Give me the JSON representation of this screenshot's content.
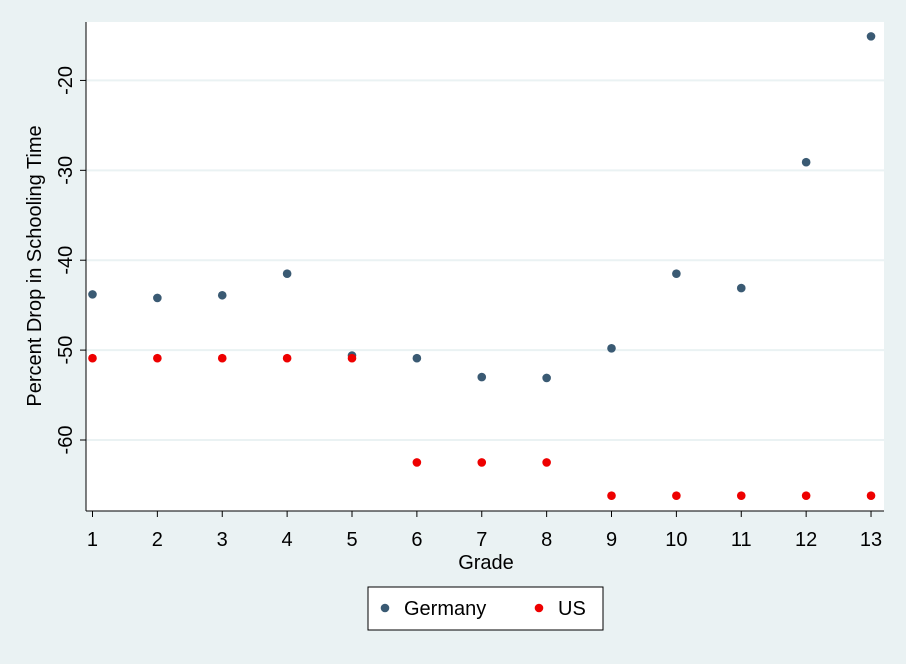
{
  "chart_data": {
    "type": "scatter",
    "xlabel": "Grade",
    "ylabel": "Percent Drop in Schooling Time",
    "x": [
      1,
      2,
      3,
      4,
      5,
      6,
      7,
      8,
      9,
      10,
      11,
      12,
      13
    ],
    "x_ticks": [
      1,
      2,
      3,
      4,
      5,
      6,
      7,
      8,
      9,
      10,
      11,
      12,
      13
    ],
    "y_ticks": [
      -20,
      -30,
      -40,
      -50,
      -60
    ],
    "xlim": [
      0.9,
      13.2
    ],
    "ylim": [
      -67.9,
      -13.5
    ],
    "grid": true,
    "legend_placement": "bottom",
    "series": [
      {
        "name": "Germany",
        "color": "#3a5a73",
        "values": [
          -43.8,
          -44.2,
          -43.9,
          -41.5,
          -50.6,
          -50.9,
          -53.0,
          -53.1,
          -49.8,
          -41.5,
          -43.1,
          -29.1,
          -15.1
        ]
      },
      {
        "name": "US",
        "color": "#ee0000",
        "values": [
          -50.9,
          -50.9,
          -50.9,
          -50.9,
          -50.9,
          -62.5,
          -62.5,
          -62.5,
          -66.2,
          -66.2,
          -66.2,
          -66.2,
          -66.2
        ]
      }
    ]
  },
  "colors": {
    "page_background": "#eaf2f3",
    "plot_background": "#ffffff",
    "grid": "#eaf2f3"
  }
}
